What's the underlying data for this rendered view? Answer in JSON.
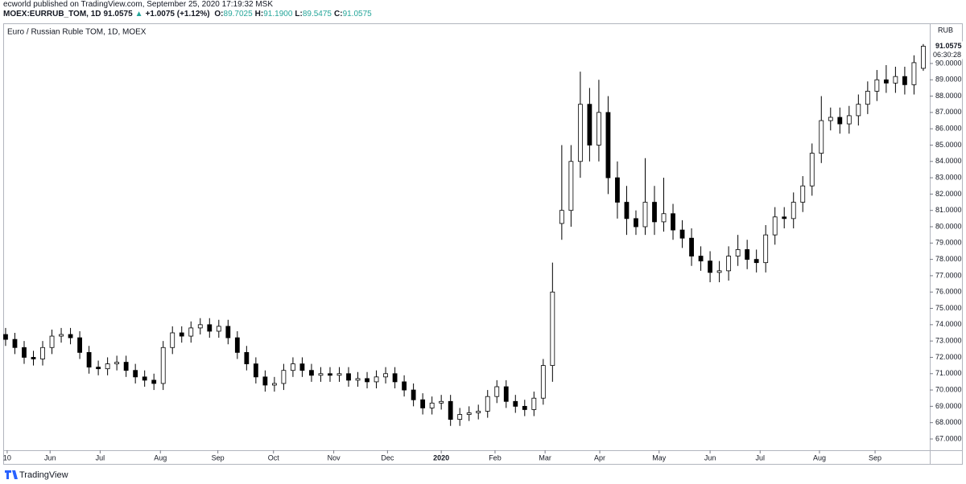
{
  "header": {
    "published": "ecworld published on TradingView.com, September 25, 2020 17:19:32 MSK",
    "symbol": "MOEX:EURRUB_TOM, 1D",
    "last": "91.0575",
    "arrow": "▲",
    "change": "+1.0075 (+1.12%)",
    "ohlc": [
      {
        "label": "O:",
        "value": "89.7025"
      },
      {
        "label": "H:",
        "value": "91.1900"
      },
      {
        "label": "L:",
        "value": "89.5475"
      },
      {
        "label": "C:",
        "value": "91.0575"
      }
    ]
  },
  "chart_data": {
    "type": "candlestick",
    "title": "Euro / Russian Ruble TOM, 1D, MOEX",
    "currency": "RUB",
    "countdown": "06:30:28",
    "up_color": "#ffffff",
    "down_color": "#000000",
    "wick_color": "#000000",
    "grid": false,
    "open": [
      73.4,
      73.1,
      72.6,
      72.0,
      71.9,
      72.6,
      73.3,
      73.4,
      73.2,
      72.3,
      71.4,
      71.3,
      71.6,
      71.7,
      71.2,
      70.8,
      70.6,
      70.4,
      72.6,
      73.5,
      73.3,
      73.8,
      74.0,
      73.6,
      73.9,
      73.2,
      72.3,
      71.6,
      70.8,
      70.3,
      70.4,
      71.2,
      71.6,
      71.2,
      70.9,
      71.0,
      70.9,
      71.0,
      70.6,
      70.7,
      70.5,
      70.8,
      71.0,
      70.5,
      70.0,
      69.4,
      68.9,
      69.2,
      69.3,
      68.2,
      68.5,
      68.6,
      68.7,
      69.6,
      70.2,
      69.3,
      69.0,
      68.8,
      69.5,
      71.5,
      80.2,
      81.0,
      84.0,
      87.5,
      85.0,
      87.0,
      83.0,
      81.5,
      80.5,
      80.0,
      81.5,
      80.3,
      80.8,
      79.8,
      79.3,
      78.2,
      77.9,
      77.2,
      77.3,
      78.2,
      78.6,
      78.0,
      77.8,
      79.5,
      80.6,
      80.5,
      81.5,
      82.5,
      84.5,
      86.5,
      86.7,
      86.3,
      86.8,
      87.5,
      88.3,
      89.0,
      88.8,
      89.2,
      88.7,
      89.7025
    ],
    "high": [
      73.8,
      73.5,
      73.0,
      72.4,
      73.0,
      73.7,
      73.8,
      73.8,
      73.6,
      72.7,
      71.8,
      72.0,
      72.1,
      72.1,
      71.6,
      71.2,
      71.0,
      73.0,
      73.9,
      73.9,
      74.2,
      74.4,
      74.4,
      74.3,
      74.3,
      73.6,
      72.7,
      72.0,
      71.2,
      70.8,
      71.6,
      72.0,
      72.0,
      71.6,
      71.4,
      71.4,
      71.4,
      71.4,
      71.1,
      71.1,
      71.2,
      71.4,
      71.4,
      70.9,
      70.4,
      69.8,
      69.6,
      69.7,
      69.7,
      68.9,
      69.0,
      69.1,
      70.0,
      70.6,
      70.6,
      69.7,
      69.4,
      69.9,
      71.9,
      77.8,
      85.0,
      85.0,
      89.5,
      88.5,
      89.0,
      88.0,
      84.0,
      82.5,
      81.0,
      84.2,
      82.5,
      83.0,
      81.4,
      80.4,
      79.9,
      78.8,
      78.5,
      77.9,
      78.8,
      79.5,
      79.2,
      78.6,
      80.1,
      81.2,
      81.2,
      82.1,
      83.1,
      85.1,
      88.0,
      87.3,
      87.3,
      87.4,
      88.1,
      88.9,
      89.6,
      89.9,
      89.8,
      89.8,
      90.5,
      91.19
    ],
    "low": [
      72.7,
      72.2,
      71.6,
      71.5,
      71.5,
      72.2,
      72.9,
      72.8,
      71.9,
      71.0,
      70.9,
      70.9,
      71.2,
      70.8,
      70.4,
      70.2,
      70.0,
      70.0,
      72.2,
      72.9,
      72.9,
      73.4,
      73.2,
      73.2,
      72.8,
      71.9,
      71.2,
      70.4,
      69.9,
      69.9,
      70.0,
      70.8,
      70.8,
      70.5,
      70.5,
      70.5,
      70.5,
      70.2,
      70.2,
      70.1,
      70.1,
      70.4,
      70.1,
      69.6,
      69.0,
      68.5,
      68.5,
      68.8,
      67.8,
      67.8,
      68.1,
      68.2,
      68.3,
      69.2,
      68.9,
      68.6,
      68.4,
      68.4,
      69.1,
      70.5,
      79.2,
      80.0,
      83.0,
      84.0,
      84.0,
      82.0,
      80.5,
      79.5,
      79.5,
      79.5,
      79.5,
      79.7,
      79.2,
      78.7,
      77.6,
      77.3,
      76.6,
      76.6,
      76.7,
      77.6,
      77.4,
      77.2,
      77.2,
      78.9,
      79.9,
      79.9,
      80.9,
      81.9,
      83.9,
      85.9,
      85.7,
      85.7,
      86.2,
      86.9,
      87.7,
      88.2,
      88.2,
      88.1,
      88.1,
      89.5475
    ],
    "close": [
      73.1,
      72.6,
      72.0,
      71.9,
      72.6,
      73.3,
      73.4,
      73.2,
      72.3,
      71.4,
      71.3,
      71.6,
      71.7,
      71.2,
      70.8,
      70.6,
      70.4,
      72.6,
      73.5,
      73.3,
      73.8,
      74.0,
      73.6,
      73.9,
      73.2,
      72.3,
      71.6,
      70.8,
      70.3,
      70.4,
      71.2,
      71.6,
      71.2,
      70.9,
      71.0,
      70.9,
      71.0,
      70.6,
      70.7,
      70.5,
      70.8,
      71.0,
      70.5,
      70.0,
      69.4,
      68.9,
      69.2,
      69.3,
      68.2,
      68.5,
      68.6,
      68.7,
      69.6,
      70.2,
      69.3,
      69.0,
      68.8,
      69.5,
      71.5,
      76.0,
      81.0,
      84.0,
      87.5,
      85.0,
      87.0,
      83.0,
      81.5,
      80.5,
      80.0,
      81.5,
      80.3,
      80.8,
      79.8,
      79.3,
      78.2,
      77.9,
      77.2,
      77.3,
      78.2,
      78.6,
      78.0,
      77.8,
      79.5,
      80.6,
      80.5,
      81.5,
      82.5,
      84.5,
      86.5,
      86.7,
      86.3,
      86.8,
      87.5,
      88.3,
      89.0,
      88.8,
      89.2,
      88.7,
      90.05,
      91.0575
    ],
    "xlim": [
      -0.17,
      99.7
    ],
    "xticks": [
      {
        "value": 0.17,
        "label": "10"
      },
      {
        "value": 4.8,
        "label": "Jun"
      },
      {
        "value": 10.2,
        "label": "Jul"
      },
      {
        "value": 16.7,
        "label": "Aug"
      },
      {
        "value": 22.9,
        "label": "Sep"
      },
      {
        "value": 28.9,
        "label": "Oct"
      },
      {
        "value": 35.4,
        "label": "Nov"
      },
      {
        "value": 41.2,
        "label": "Dec"
      },
      {
        "value": 47.0,
        "label": "2020"
      },
      {
        "value": 52.8,
        "label": "Feb"
      },
      {
        "value": 58.2,
        "label": "Mar"
      },
      {
        "value": 64.1,
        "label": "Apr"
      },
      {
        "value": 70.5,
        "label": "May"
      },
      {
        "value": 76.0,
        "label": "Jun"
      },
      {
        "value": 81.4,
        "label": "Jul"
      },
      {
        "value": 87.8,
        "label": "Aug"
      },
      {
        "value": 93.8,
        "label": "Sep"
      }
    ],
    "ylim": [
      66.31,
      92.41
    ],
    "yticks": [
      {
        "value": 67,
        "label": "67.0000"
      },
      {
        "value": 68,
        "label": "68.0000"
      },
      {
        "value": 69,
        "label": "69.0000"
      },
      {
        "value": 70,
        "label": "70.0000"
      },
      {
        "value": 71,
        "label": "71.0000"
      },
      {
        "value": 72,
        "label": "72.0000"
      },
      {
        "value": 73,
        "label": "73.0000"
      },
      {
        "value": 74,
        "label": "74.0000"
      },
      {
        "value": 75,
        "label": "75.0000"
      },
      {
        "value": 76,
        "label": "76.0000"
      },
      {
        "value": 77,
        "label": "77.0000"
      },
      {
        "value": 78,
        "label": "78.0000"
      },
      {
        "value": 79,
        "label": "79.0000"
      },
      {
        "value": 80,
        "label": "80.0000"
      },
      {
        "value": 81,
        "label": "81.0000"
      },
      {
        "value": 82,
        "label": "82.0000"
      },
      {
        "value": 83,
        "label": "83.0000"
      },
      {
        "value": 84,
        "label": "84.0000"
      },
      {
        "value": 85,
        "label": "85.0000"
      },
      {
        "value": 86,
        "label": "86.0000"
      },
      {
        "value": 87,
        "label": "87.0000"
      },
      {
        "value": 88,
        "label": "88.0000"
      },
      {
        "value": 89,
        "label": "89.0000"
      },
      {
        "value": 90,
        "label": "90.0000"
      }
    ]
  },
  "footer": {
    "brand": "TradingView"
  }
}
